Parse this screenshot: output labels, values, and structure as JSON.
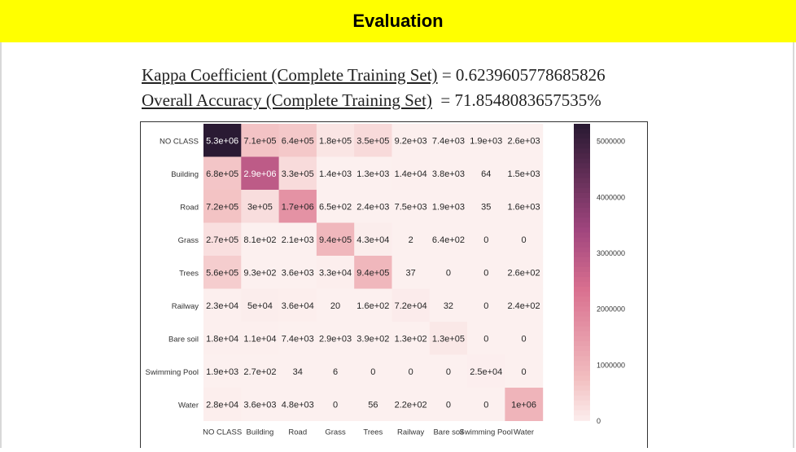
{
  "header": {
    "title": "Evaluation"
  },
  "metrics": {
    "kappa": {
      "label": "Kappa Coefficient (Complete Training Set)",
      "value": " = 0.6239605778685826"
    },
    "accuracy": {
      "label": "Overall Accuracy (Complete Training Set)",
      "value": "  = 71.8548083657535%"
    }
  },
  "chart_data": {
    "type": "heatmap",
    "title": "",
    "xlabel": "",
    "ylabel": "",
    "row_labels": [
      "NO CLASS",
      "Building",
      "Road",
      "Grass",
      "Trees",
      "Railway",
      "Bare soil",
      "Swimming Pool",
      "Water"
    ],
    "col_labels": [
      "NO CLASS",
      "Building",
      "Road",
      "Grass",
      "Trees",
      "Railway",
      "Bare soil",
      "Swimming Pool",
      "Water"
    ],
    "values": [
      [
        5300000,
        710000,
        640000,
        180000,
        350000,
        9200,
        7400,
        1900,
        2600
      ],
      [
        680000,
        2900000,
        330000,
        1400,
        1300,
        14000,
        3800,
        64,
        1500
      ],
      [
        720000,
        300000,
        1700000,
        650,
        2400,
        7500,
        1900,
        35,
        1600
      ],
      [
        270000,
        810,
        2100,
        940000,
        43000,
        2,
        640,
        0,
        0
      ],
      [
        560000,
        930,
        3600,
        33000,
        940000,
        37,
        0,
        0,
        260
      ],
      [
        23000,
        50000,
        36000,
        20,
        160,
        72000,
        32,
        0,
        240
      ],
      [
        18000,
        11000,
        7400,
        2900,
        390,
        130,
        130000,
        0,
        0
      ],
      [
        1900,
        270,
        34,
        6,
        0,
        0,
        0,
        25000,
        0
      ],
      [
        28000,
        3600,
        4800,
        0,
        56,
        220,
        0,
        0,
        1000000
      ]
    ],
    "cell_labels": [
      [
        "5.3e+06",
        "7.1e+05",
        "6.4e+05",
        "1.8e+05",
        "3.5e+05",
        "9.2e+03",
        "7.4e+03",
        "1.9e+03",
        "2.6e+03"
      ],
      [
        "6.8e+05",
        "2.9e+06",
        "3.3e+05",
        "1.4e+03",
        "1.3e+03",
        "1.4e+04",
        "3.8e+03",
        "64",
        "1.5e+03"
      ],
      [
        "7.2e+05",
        "3e+05",
        "1.7e+06",
        "6.5e+02",
        "2.4e+03",
        "7.5e+03",
        "1.9e+03",
        "35",
        "1.6e+03"
      ],
      [
        "2.7e+05",
        "8.1e+02",
        "2.1e+03",
        "9.4e+05",
        "4.3e+04",
        "2",
        "6.4e+02",
        "0",
        "0"
      ],
      [
        "5.6e+05",
        "9.3e+02",
        "3.6e+03",
        "3.3e+04",
        "9.4e+05",
        "37",
        "0",
        "0",
        "2.6e+02"
      ],
      [
        "2.3e+04",
        "5e+04",
        "3.6e+04",
        "20",
        "1.6e+02",
        "7.2e+04",
        "32",
        "0",
        "2.4e+02"
      ],
      [
        "1.8e+04",
        "1.1e+04",
        "7.4e+03",
        "2.9e+03",
        "3.9e+02",
        "1.3e+02",
        "1.3e+05",
        "0",
        "0"
      ],
      [
        "1.9e+03",
        "2.7e+02",
        "34",
        "6",
        "0",
        "0",
        "0",
        "2.5e+04",
        "0"
      ],
      [
        "2.8e+04",
        "3.6e+03",
        "4.8e+03",
        "0",
        "56",
        "2.2e+02",
        "0",
        "0",
        "1e+06"
      ]
    ],
    "colorbar": {
      "range": [
        0,
        5300000
      ],
      "ticks": [
        0,
        1000000,
        2000000,
        3000000,
        4000000,
        5000000
      ],
      "tick_labels": [
        "0",
        "1000000",
        "2000000",
        "3000000",
        "4000000",
        "5000000"
      ],
      "colors": {
        "low": "#fcf0ef",
        "mid_low": "#f2bec0",
        "mid": "#d9708f",
        "mid_high": "#a0457e",
        "high": "#2a1a33"
      }
    }
  }
}
